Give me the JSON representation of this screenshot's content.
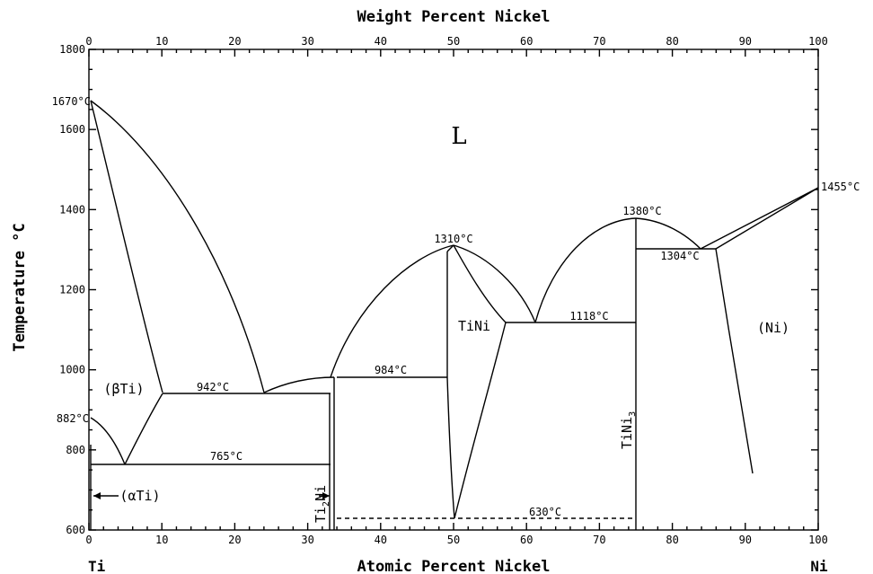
{
  "top_axis_title": "Weight Percent Nickel",
  "bottom_axis_title": "Atomic Percent Nickel",
  "y_axis_title": "Temperature °C",
  "left_element": "Ti",
  "right_element": "Ni",
  "x_ticks": [
    "0",
    "10",
    "20",
    "30",
    "40",
    "50",
    "60",
    "70",
    "80",
    "90",
    "100"
  ],
  "top_ticks": [
    "0",
    "10",
    "20",
    "30",
    "40",
    "50",
    "60",
    "70",
    "80",
    "90",
    "100"
  ],
  "y_ticks": [
    "600",
    "800",
    "1000",
    "1200",
    "1400",
    "1600",
    "1800"
  ],
  "phase_labels": {
    "liquid": "L",
    "beta_ti": "(βTi)",
    "alpha_ti": "(αTi)",
    "ti2ni_pre": "Ti",
    "ti2ni_sub": "2",
    "ti2ni_post": "Ni",
    "tini": "TiNi",
    "tini3_pre": "TiNi",
    "tini3_sub": "3",
    "ni": "(Ni)"
  },
  "temp_labels": {
    "t1670": "1670°C",
    "t882": "882°C",
    "t942": "942°C",
    "t765": "765°C",
    "t984": "984°C",
    "t1310": "1310°C",
    "t1118": "1118°C",
    "t1380": "1380°C",
    "t1304": "1304°C",
    "t1455": "1455°C",
    "t630": "630°C"
  }
}
